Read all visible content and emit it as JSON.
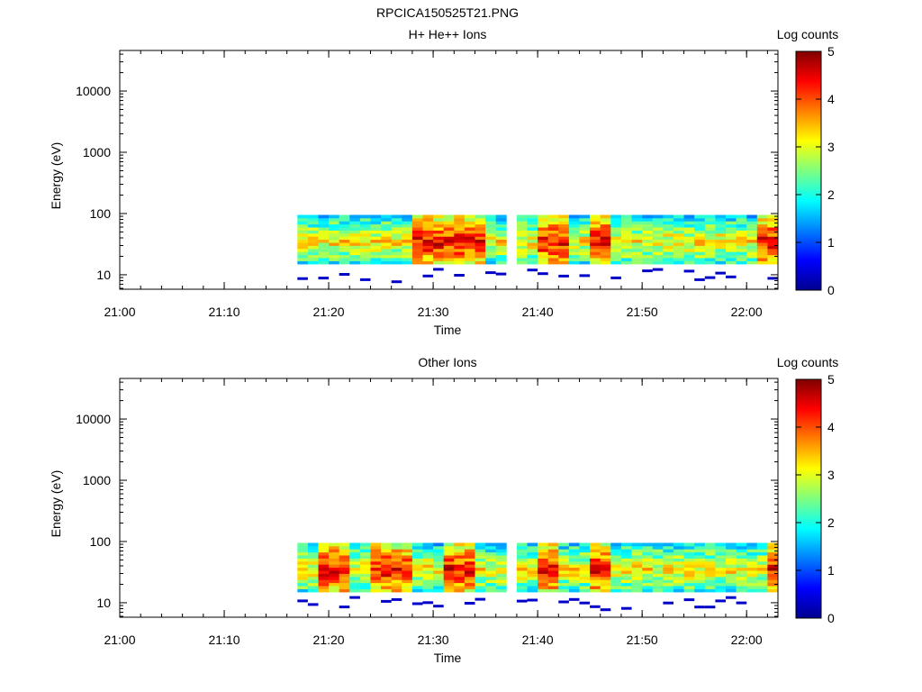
{
  "file_title": "RPCICA150525T21.PNG",
  "colorbar_label": "Log counts",
  "colorbar_ticks": [
    "0",
    "1",
    "2",
    "3",
    "4",
    "5"
  ],
  "chart_data": [
    {
      "type": "heatmap",
      "title": "H+ He++ Ions",
      "xlabel": "Time",
      "ylabel": "Energy (eV)",
      "x_ticks": [
        "21:00",
        "21:10",
        "21:20",
        "21:30",
        "21:40",
        "21:50",
        "22:00"
      ],
      "y_ticks": [
        "10",
        "100",
        "1000",
        "10000"
      ],
      "y_scale": "log",
      "y_range": [
        5.8,
        46000
      ],
      "x_range": [
        "21:00",
        "22:03"
      ],
      "colorbar_range": [
        0,
        5
      ],
      "data_start": "21:17",
      "data_end": "22:03",
      "gap": [
        "21:36:30",
        "21:37:30"
      ],
      "peak_intervals": [
        "21:28-21:34",
        "21:40-21:42",
        "21:45-21:46",
        "22:01-22:03"
      ],
      "energy_band_eV": [
        15,
        95
      ]
    },
    {
      "type": "heatmap",
      "title": "Other Ions",
      "xlabel": "Time",
      "ylabel": "Energy (eV)",
      "x_ticks": [
        "21:00",
        "21:10",
        "21:20",
        "21:30",
        "21:40",
        "21:50",
        "22:00"
      ],
      "y_ticks": [
        "10",
        "100",
        "1000",
        "10000"
      ],
      "y_scale": "log",
      "y_range": [
        5.8,
        46000
      ],
      "x_range": [
        "21:00",
        "22:03"
      ],
      "colorbar_range": [
        0,
        5
      ],
      "data_start": "21:17",
      "data_end": "22:03",
      "gap": [
        "21:36:30",
        "21:37:30"
      ],
      "peak_intervals": [
        "21:19-21:21",
        "21:24-21:27",
        "21:31-21:33",
        "21:40-21:41",
        "21:45-21:46",
        "22:02-22:03"
      ],
      "energy_band_eV": [
        15,
        95
      ]
    }
  ]
}
